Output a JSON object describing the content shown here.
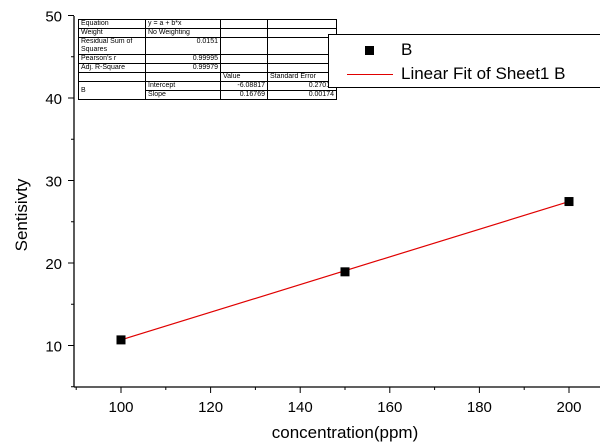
{
  "chart_data": {
    "type": "scatter",
    "xlabel": "concentration(ppm)",
    "ylabel": "Sentisivty",
    "xlim": [
      90,
      205
    ],
    "ylim": [
      0,
      50
    ],
    "x_ticks": [
      "100",
      "120",
      "140",
      "160",
      "180",
      "200"
    ],
    "y_ticks": [
      "10",
      "20",
      "30",
      "40",
      "50"
    ],
    "series": [
      {
        "name": "B",
        "kind": "scatter",
        "marker": "square",
        "color": "#000000",
        "x": [
          100,
          150,
          200
        ],
        "y": [
          10.68,
          18.93,
          27.45
        ]
      },
      {
        "name": "Linear Fit of Sheet1 B",
        "kind": "line",
        "color": "#e00000",
        "x": [
          100,
          200
        ],
        "y": [
          10.68,
          27.45
        ]
      }
    ],
    "legend_position": "top-right",
    "grid": false,
    "fit_table": {
      "equation_label": "Equation",
      "equation": "y = a + b*x",
      "weight_label": "Weight",
      "weight": "No Weighting",
      "rss_label": "Residual Sum of Squares",
      "rss": "0.0151",
      "pearson_label": "Pearson's r",
      "pearson": "0.99995",
      "adj_r2_label": "Adj. R-Square",
      "adj_r2": "0.99979",
      "value_header": "Value",
      "stderr_header": "Standard Error",
      "row_group": "B",
      "intercept_label": "Intercept",
      "intercept_value": "-6.08817",
      "intercept_error": "0.27016",
      "slope_label": "Slope",
      "slope_value": "0.16769",
      "slope_error": "0.00174"
    }
  }
}
